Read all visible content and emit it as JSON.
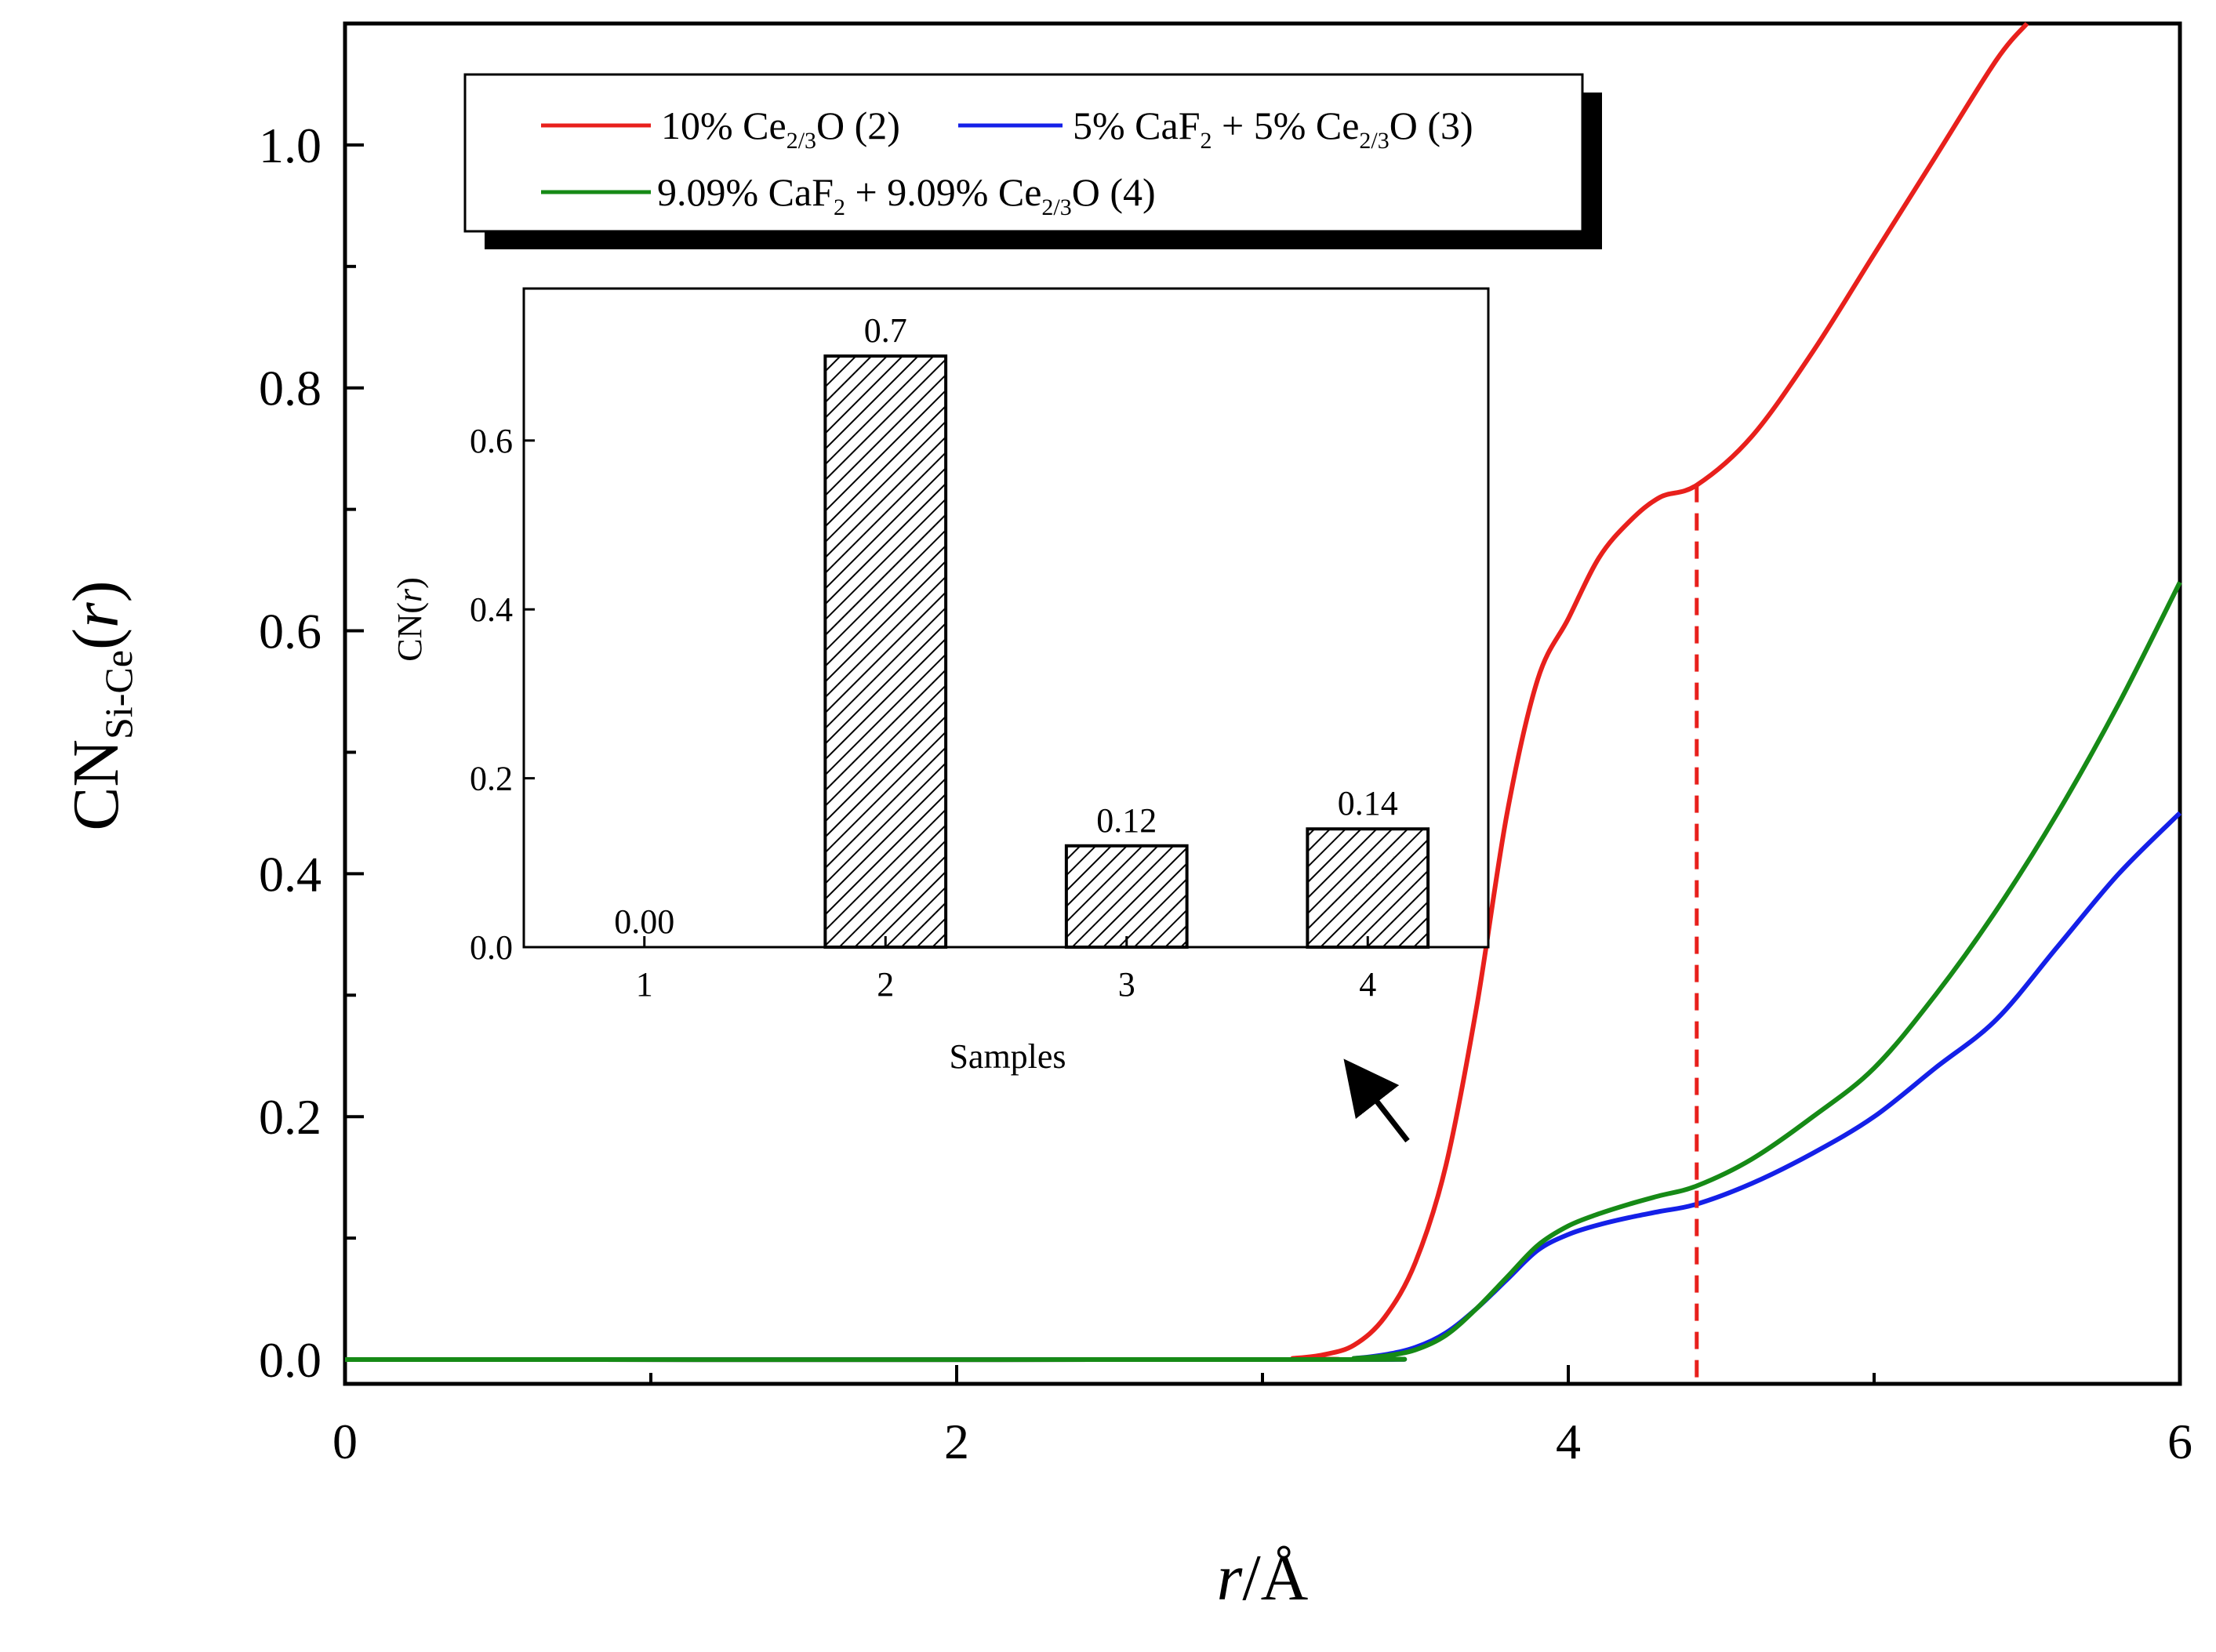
{
  "chart_data": {
    "type": "line",
    "xlabel": "r/Å",
    "xlabel_parts": {
      "var": "r",
      "unit": "/Å"
    },
    "ylabel": "CNSi-Ce(r)",
    "ylabel_parts": {
      "main": "CN",
      "sub": "Si-Ce",
      "open": "(",
      "var": "r",
      "close": ")"
    },
    "xlim": [
      0,
      6
    ],
    "ylim": [
      -0.02,
      1.1
    ],
    "x_ticks": [
      0,
      2,
      4,
      6
    ],
    "x_tick_labels": [
      "0",
      "2",
      "4",
      "6"
    ],
    "y_ticks": [
      0.0,
      0.2,
      0.4,
      0.6,
      0.8,
      1.0
    ],
    "y_tick_labels": [
      "0.0",
      "0.2",
      "0.4",
      "0.6",
      "0.8",
      "1.0"
    ],
    "cutoff_r": 4.42,
    "colors": {
      "cutoff": "#e8201c"
    },
    "legend": {
      "entries": [
        {
          "series": 0,
          "pre": "10% Ce",
          "sub": "2/3",
          "post": "O (2)"
        },
        {
          "series": 1,
          "pre": "5% CaF",
          "sub": "2",
          "mid": " + 5% Ce",
          "sub2": "2/3",
          "post": "O (3)"
        },
        {
          "series": 2,
          "pre": "9.09% CaF",
          "sub": "2",
          "mid": " + 9.09% Ce",
          "sub2": "2/3",
          "post": "O (4)"
        }
      ]
    },
    "series": [
      {
        "name": "10% Ce2/3O (2)",
        "color": "#e8201c",
        "x": [
          0,
          3.0,
          3.1,
          3.2,
          3.3,
          3.4,
          3.5,
          3.6,
          3.7,
          3.8,
          3.9,
          4.0,
          4.1,
          4.2,
          4.3,
          4.42,
          4.6,
          4.8,
          5.0,
          5.2,
          5.4,
          5.5
        ],
        "y": [
          0,
          0,
          0.001,
          0.004,
          0.012,
          0.035,
          0.08,
          0.16,
          0.29,
          0.45,
          0.56,
          0.61,
          0.66,
          0.69,
          0.71,
          0.72,
          0.76,
          0.83,
          0.91,
          0.99,
          1.07,
          1.1
        ]
      },
      {
        "name": "5% CaF2 + 5% Ce2/3O (3)",
        "color": "#1420e8",
        "x": [
          0,
          3.2,
          3.3,
          3.4,
          3.5,
          3.6,
          3.7,
          3.8,
          3.9,
          4.0,
          4.1,
          4.2,
          4.3,
          4.42,
          4.6,
          4.8,
          5.0,
          5.2,
          5.4,
          5.6,
          5.8,
          6.0
        ],
        "y": [
          0,
          0,
          0.001,
          0.004,
          0.01,
          0.022,
          0.042,
          0.066,
          0.09,
          0.103,
          0.111,
          0.117,
          0.122,
          0.128,
          0.145,
          0.17,
          0.2,
          0.24,
          0.28,
          0.34,
          0.4,
          0.45
        ]
      },
      {
        "name": "9.09% CaF2 + 9.09% Ce2/3O (4)",
        "color": "#168a16",
        "x": [
          0,
          3.2,
          3.3,
          3.4,
          3.5,
          3.6,
          3.7,
          3.8,
          3.9,
          4.0,
          4.1,
          4.2,
          4.3,
          4.42,
          4.6,
          4.8,
          5.0,
          5.2,
          5.4,
          5.6,
          5.8,
          6.0
        ],
        "y": [
          0,
          0,
          0.001,
          0.003,
          0.008,
          0.02,
          0.042,
          0.068,
          0.094,
          0.11,
          0.12,
          0.128,
          0.135,
          0.143,
          0.165,
          0.2,
          0.24,
          0.3,
          0.37,
          0.45,
          0.54,
          0.64
        ]
      }
    ],
    "inset": {
      "type": "bar",
      "xlabel": "Samples",
      "ylabel": "CN(r)",
      "ylabel_parts": {
        "main": "CN(",
        "var": "r",
        "close": ")"
      },
      "categories": [
        "1",
        "2",
        "3",
        "4"
      ],
      "values": [
        0.0,
        0.7,
        0.12,
        0.14
      ],
      "value_labels": [
        "0.00",
        "0.7",
        "0.12",
        "0.14"
      ],
      "ylim": [
        0,
        0.78
      ],
      "y_ticks": [
        0.0,
        0.2,
        0.4,
        0.6
      ],
      "y_tick_labels": [
        "0.0",
        "0.2",
        "0.4",
        "0.6"
      ]
    }
  }
}
